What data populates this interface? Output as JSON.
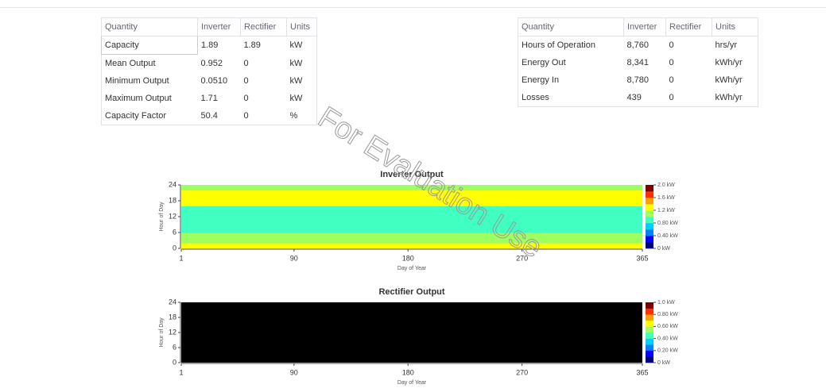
{
  "tables": [
    {
      "headers": [
        "Quantity",
        "Inverter",
        "Rectifier",
        "Units"
      ],
      "rows": [
        [
          "Capacity",
          "1.89",
          "1.89",
          "kW"
        ],
        [
          "Mean Output",
          "0.952",
          "0",
          "kW"
        ],
        [
          "Minimum Output",
          "0.0510",
          "0",
          "kW"
        ],
        [
          "Maximum Output",
          "1.71",
          "0",
          "kW"
        ],
        [
          "Capacity Factor",
          "50.4",
          "0",
          "%"
        ]
      ]
    },
    {
      "headers": [
        "Quantity",
        "Inverter",
        "Rectifier",
        "Units"
      ],
      "rows": [
        [
          "Hours of Operation",
          "8,760",
          "0",
          "hrs/yr"
        ],
        [
          "Energy Out",
          "8,341",
          "0",
          "kWh/yr"
        ],
        [
          "Energy In",
          "8,780",
          "0",
          "kWh/yr"
        ],
        [
          "Losses",
          "439",
          "0",
          "kWh/yr"
        ]
      ]
    }
  ],
  "watermark": "For Evaluation Use",
  "chart_data": [
    {
      "type": "heatmap",
      "title": "Inverter Output",
      "x_label": "Day of Year",
      "y_label": "Hour of Day",
      "xlim": [
        1,
        365
      ],
      "xticks": [
        1,
        90,
        180,
        270,
        365
      ],
      "ylim": [
        0,
        24
      ],
      "yticks": [
        0,
        6,
        12,
        18,
        24
      ],
      "zlim": [
        0,
        2.0
      ],
      "zticks": [
        {
          "value": 2.0,
          "label": "2.0 kW"
        },
        {
          "value": 1.6,
          "label": "1.6 kW"
        },
        {
          "value": 1.2,
          "label": "1.2 kW"
        },
        {
          "value": 0.8,
          "label": "0.80 kW"
        },
        {
          "value": 0.4,
          "label": "0.40 kW"
        },
        {
          "value": 0,
          "label": "0 kW"
        }
      ],
      "colors": [
        "#00007f",
        "#0000ff",
        "#0080ff",
        "#00d0ff",
        "#40ffc0",
        "#a0ff60",
        "#ffff00",
        "#ffa000",
        "#ff3000",
        "#800000"
      ],
      "values": [
        1.2,
        1.2,
        1.15,
        1.1,
        1.0,
        1.0,
        0.95,
        0.9,
        0.9,
        0.85,
        0.85,
        0.85,
        0.85,
        0.9,
        0.9,
        0.95,
        1.2,
        1.3,
        1.35,
        1.35,
        1.3,
        1.25,
        1.0,
        1.0
      ]
    },
    {
      "type": "heatmap",
      "title": "Rectifier Output",
      "x_label": "Day of Year",
      "y_label": "Hour of Day",
      "xlim": [
        1,
        365
      ],
      "xticks": [
        1,
        90,
        180,
        270,
        365
      ],
      "ylim": [
        0,
        24
      ],
      "yticks": [
        0,
        6,
        12,
        18,
        24
      ],
      "zlim": [
        0,
        1.0
      ],
      "zticks": [
        {
          "value": 1.0,
          "label": "1.0 kW"
        },
        {
          "value": 0.8,
          "label": "0.80 kW"
        },
        {
          "value": 0.6,
          "label": "0.60 kW"
        },
        {
          "value": 0.4,
          "label": "0.40 kW"
        },
        {
          "value": 0.2,
          "label": "0.20 kW"
        },
        {
          "value": 0,
          "label": "0 kW"
        }
      ],
      "colors": [
        "#00007f",
        "#0000ff",
        "#0080ff",
        "#00d0ff",
        "#40ffc0",
        "#a0ff60",
        "#ffff00",
        "#ffa000",
        "#ff3000",
        "#800000"
      ],
      "plot_color": "#000000"
    }
  ]
}
